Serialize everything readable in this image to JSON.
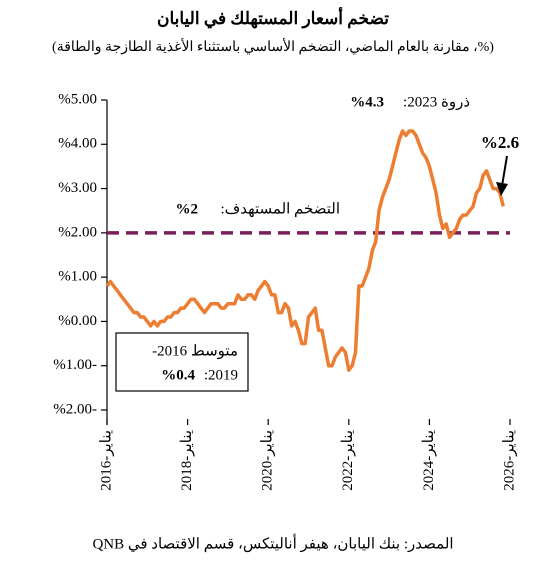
{
  "chart_data": {
    "type": "line",
    "title": "تضخم أسعار المستهلك في اليابان",
    "subtitle": "(%، مقارنة بالعام الماضي، التضخم الأساسي باستثناء الأغذية الطازجة والطاقة)",
    "source": "المصدر: بنك اليابان، هيفر أناليتكس، قسم الاقتصاد في QNB",
    "x": [
      "2016-01",
      "2016-02",
      "2016-03",
      "2016-04",
      "2016-05",
      "2016-06",
      "2016-07",
      "2016-08",
      "2016-09",
      "2016-10",
      "2016-11",
      "2016-12",
      "2017-01",
      "2017-02",
      "2017-03",
      "2017-04",
      "2017-05",
      "2017-06",
      "2017-07",
      "2017-08",
      "2017-09",
      "2017-10",
      "2017-11",
      "2017-12",
      "2018-01",
      "2018-02",
      "2018-03",
      "2018-04",
      "2018-05",
      "2018-06",
      "2018-07",
      "2018-08",
      "2018-09",
      "2018-10",
      "2018-11",
      "2018-12",
      "2019-01",
      "2019-02",
      "2019-03",
      "2019-04",
      "2019-05",
      "2019-06",
      "2019-07",
      "2019-08",
      "2019-09",
      "2019-10",
      "2019-11",
      "2019-12",
      "2020-01",
      "2020-02",
      "2020-03",
      "2020-04",
      "2020-05",
      "2020-06",
      "2020-07",
      "2020-08",
      "2020-09",
      "2020-10",
      "2020-11",
      "2020-12",
      "2021-01",
      "2021-02",
      "2021-03",
      "2021-04",
      "2021-05",
      "2021-06",
      "2021-07",
      "2021-08",
      "2021-09",
      "2021-10",
      "2021-11",
      "2021-12",
      "2022-01",
      "2022-02",
      "2022-03",
      "2022-04",
      "2022-05",
      "2022-06",
      "2022-07",
      "2022-08",
      "2022-09",
      "2022-10",
      "2022-11",
      "2022-12",
      "2023-01",
      "2023-02",
      "2023-03",
      "2023-04",
      "2023-05",
      "2023-06",
      "2023-07",
      "2023-08",
      "2023-09",
      "2023-10",
      "2023-11",
      "2023-12",
      "2024-01",
      "2024-02",
      "2024-03",
      "2024-04",
      "2024-05",
      "2024-06",
      "2024-07",
      "2024-08",
      "2024-09",
      "2024-10",
      "2024-11",
      "2024-12",
      "2025-01",
      "2025-02",
      "2025-03",
      "2025-04",
      "2025-05",
      "2025-06",
      "2025-07",
      "2025-08",
      "2025-09",
      "2025-10",
      "2025-11"
    ],
    "series": [
      {
        "name": "التضخم الأساسي",
        "color": "#ed7d31",
        "values": [
          0.8,
          0.9,
          0.8,
          0.7,
          0.6,
          0.5,
          0.4,
          0.3,
          0.2,
          0.2,
          0.1,
          0.1,
          0.0,
          -0.1,
          0.0,
          -0.1,
          0.0,
          0.0,
          0.1,
          0.1,
          0.2,
          0.2,
          0.3,
          0.3,
          0.4,
          0.5,
          0.5,
          0.4,
          0.3,
          0.2,
          0.3,
          0.4,
          0.4,
          0.4,
          0.3,
          0.3,
          0.4,
          0.4,
          0.4,
          0.6,
          0.5,
          0.5,
          0.6,
          0.6,
          0.5,
          0.7,
          0.8,
          0.9,
          0.8,
          0.6,
          0.6,
          0.2,
          0.2,
          0.4,
          0.3,
          -0.1,
          0.0,
          -0.2,
          -0.5,
          -0.5,
          0.1,
          0.2,
          0.3,
          -0.2,
          -0.2,
          -0.6,
          -1.0,
          -1.0,
          -0.8,
          -0.7,
          -0.6,
          -0.7,
          -1.1,
          -1.0,
          -0.7,
          0.8,
          0.8,
          1.0,
          1.2,
          1.6,
          1.8,
          2.5,
          2.8,
          3.0,
          3.2,
          3.5,
          3.8,
          4.1,
          4.3,
          4.2,
          4.3,
          4.3,
          4.2,
          4.0,
          3.8,
          3.7,
          3.5,
          3.2,
          2.9,
          2.4,
          2.1,
          2.2,
          1.9,
          2.0,
          2.1,
          2.3,
          2.4,
          2.4,
          2.5,
          2.6,
          2.9,
          3.0,
          3.3,
          3.4,
          3.2,
          3.0,
          3.0,
          2.9,
          2.6
        ]
      }
    ],
    "xlim": [
      "2016-01",
      "2026-01"
    ],
    "xticks": [
      {
        "value": "2016-01",
        "label": "يناير-2016"
      },
      {
        "value": "2018-01",
        "label": "يناير-2018"
      },
      {
        "value": "2020-01",
        "label": "يناير-2020"
      },
      {
        "value": "2022-01",
        "label": "يناير-2022"
      },
      {
        "value": "2024-01",
        "label": "يناير-2024"
      },
      {
        "value": "2026-01",
        "label": "يناير-2026"
      }
    ],
    "ylim": [
      -2,
      5
    ],
    "yticks": [
      {
        "value": 5,
        "label": "%5.00"
      },
      {
        "value": 4,
        "label": "%4.00"
      },
      {
        "value": 3,
        "label": "%3.00"
      },
      {
        "value": 2,
        "label": "%2.00"
      },
      {
        "value": 1,
        "label": "%1.00"
      },
      {
        "value": 0,
        "label": "%0.00"
      },
      {
        "value": -1,
        "label": "%1.00-"
      },
      {
        "value": -2,
        "label": "%2.00-"
      }
    ],
    "target": {
      "value": 2,
      "label": "التضخم المستهدف:",
      "value_label": "%2",
      "color": "#7b1f5a"
    },
    "peak_annotation": {
      "label": "ذروة 2023:",
      "value_label": "%4.3"
    },
    "last_annotation": "%2.6",
    "average_box": {
      "line1": "متوسط 2016-",
      "line2": "2019:",
      "value_label": "%0.4"
    }
  }
}
